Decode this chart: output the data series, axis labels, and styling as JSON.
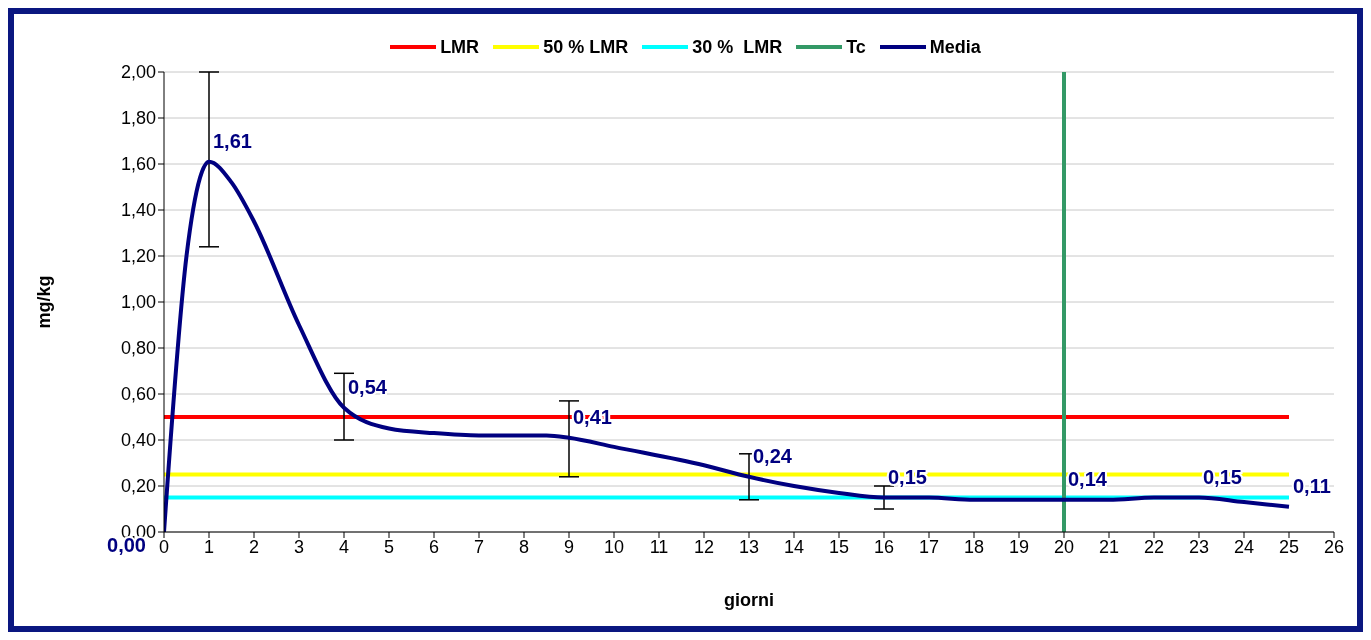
{
  "chart_data": {
    "type": "line",
    "xlabel": "giorni",
    "ylabel": "mg/kg",
    "legend": "top",
    "grid": "y",
    "marker": "none",
    "line_style": "solid",
    "xlim": [
      0,
      26
    ],
    "xticks": [
      0,
      1,
      2,
      3,
      4,
      5,
      6,
      7,
      8,
      9,
      10,
      11,
      12,
      13,
      14,
      15,
      16,
      17,
      18,
      19,
      20,
      21,
      22,
      23,
      24,
      25,
      26
    ],
    "ylim": [
      0,
      2
    ],
    "yticks": [
      {
        "value": 0,
        "label": "0,00"
      },
      {
        "value": 0.2,
        "label": "0,20"
      },
      {
        "value": 0.4,
        "label": "0,40"
      },
      {
        "value": 0.6,
        "label": "0,60"
      },
      {
        "value": 0.8,
        "label": "0,80"
      },
      {
        "value": 1,
        "label": "1,00"
      },
      {
        "value": 1.2,
        "label": "1,20"
      },
      {
        "value": 1.4,
        "label": "1,40"
      },
      {
        "value": 1.6,
        "label": "1,60"
      },
      {
        "value": 1.8,
        "label": "1,80"
      },
      {
        "value": 2,
        "label": "2,00"
      }
    ],
    "series": [
      {
        "name": "Media",
        "color": "#000080",
        "x": [
          0,
          0.5,
          0.8,
          1,
          1.5,
          2,
          3,
          4,
          5,
          6,
          7,
          8.5,
          9,
          10,
          12,
          13,
          14,
          15,
          16,
          17,
          18,
          20,
          21,
          22,
          23,
          24,
          25
        ],
        "values": [
          0,
          1.2,
          1.54,
          1.61,
          1.52,
          1.35,
          0.9,
          0.54,
          0.45,
          0.43,
          0.42,
          0.42,
          0.41,
          0.37,
          0.29,
          0.24,
          0.2,
          0.17,
          0.15,
          0.15,
          0.14,
          0.14,
          0.14,
          0.15,
          0.15,
          0.13,
          0.11
        ],
        "value_labels": [
          "0,00",
          null,
          null,
          "1,61",
          null,
          null,
          null,
          "0,54",
          null,
          null,
          null,
          null,
          "0,41",
          null,
          null,
          "0,24",
          null,
          null,
          "0,15",
          null,
          null,
          "0,14",
          null,
          null,
          "0,15",
          null,
          "0,11"
        ],
        "errors": [
          null,
          null,
          null,
          [
            1.24,
            2.0
          ],
          null,
          null,
          null,
          [
            0.4,
            0.69
          ],
          null,
          null,
          null,
          null,
          [
            0.24,
            0.57
          ],
          null,
          null,
          [
            0.14,
            0.34
          ],
          null,
          null,
          [
            0.1,
            0.2
          ],
          null,
          null,
          null,
          null,
          null,
          null,
          null,
          null
        ]
      }
    ],
    "ref_lines": [
      {
        "axis": "y",
        "value": 0.5,
        "label": "LMR",
        "color": "#ff0000"
      },
      {
        "axis": "y",
        "value": 0.25,
        "label": "50 % LMR",
        "color": "#ffff00"
      },
      {
        "axis": "y",
        "value": 0.15,
        "label": "30 %  LMR",
        "color": "#00ffff"
      },
      {
        "axis": "x",
        "value": 20,
        "label": "Tc",
        "color": "#339966"
      }
    ]
  }
}
